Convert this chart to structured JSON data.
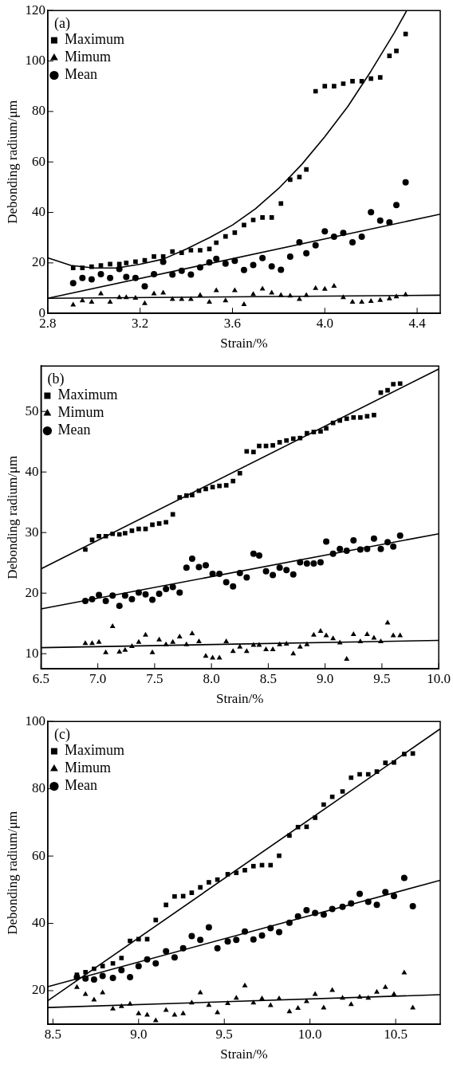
{
  "chart_data": [
    {
      "type": "scatter",
      "xlabel": "Strain/%",
      "ylabel": "Debonding radium/μm",
      "annotations": [
        "(a)"
      ],
      "legend": "top left",
      "grid": false,
      "xlim": [
        2.8,
        4.5
      ],
      "xticks": [
        2.8,
        3.2,
        3.6,
        {
          "value": 4.0,
          "label": "4.0"
        },
        4.4
      ],
      "ylim": [
        0,
        120
      ],
      "yticks": [
        0,
        20,
        40,
        60,
        80,
        100,
        120
      ],
      "x": [
        2.91,
        2.95,
        2.99,
        3.03,
        3.07,
        3.11,
        3.14,
        3.18,
        3.22,
        3.26,
        3.3,
        3.34,
        3.38,
        3.42,
        3.46,
        3.5,
        3.53,
        3.57,
        3.61,
        3.65,
        3.69,
        3.73,
        3.77,
        3.81,
        3.85,
        3.89,
        3.92,
        3.96,
        4.0,
        4.04,
        4.08,
        4.12,
        4.16,
        4.2,
        4.24,
        4.28,
        4.31,
        4.35
      ],
      "series": [
        {
          "name": "Maximum",
          "color": "#000000",
          "marker": "square",
          "values": [
            18,
            18,
            18.5,
            19,
            19.5,
            19.5,
            20,
            20.5,
            21,
            22.5,
            22.5,
            24.5,
            24,
            25,
            25,
            25.5,
            28,
            30.5,
            32,
            35,
            37,
            38,
            38,
            43.5,
            53,
            54,
            57,
            88,
            90,
            90,
            91,
            92,
            92,
            93,
            93.5,
            102,
            104,
            110.7
          ]
        },
        {
          "name": "Mimum",
          "color": "#000000",
          "marker": "triangle",
          "values": [
            3.4,
            5,
            4.5,
            7.8,
            4.5,
            6.3,
            6.3,
            6.1,
            3.9,
            7.8,
            8.1,
            5.6,
            5.6,
            5.6,
            7.2,
            4.5,
            9.1,
            5,
            9.1,
            3.5,
            7.6,
            9.7,
            8.1,
            7.2,
            6.9,
            5.6,
            7.2,
            9.9,
            9.6,
            10.8,
            6.3,
            4.5,
            4.5,
            4.8,
            5.2,
            5.8,
            6.6,
            7.4
          ]
        },
        {
          "name": "Mean",
          "color": "#000000",
          "marker": "circle",
          "values": [
            12,
            14,
            13.5,
            15.5,
            14,
            17.6,
            14.4,
            14,
            10.7,
            15.5,
            20.4,
            15.4,
            16.9,
            15.4,
            18.2,
            20.2,
            21.6,
            19.7,
            20.8,
            17.2,
            19.2,
            21.9,
            18.6,
            17.3,
            22.5,
            28.2,
            23.8,
            27,
            32.5,
            30.4,
            31.9,
            28.2,
            30.4,
            40.1,
            36.8,
            36.1,
            42.9,
            51.9
          ]
        },
        {
          "type": "line",
          "color": "#000000",
          "marker": "none",
          "x": [
            2.8,
            2.9,
            3.0,
            3.1,
            3.2,
            3.3,
            3.4,
            3.5,
            3.6,
            3.7,
            3.8,
            3.9,
            4.0,
            4.1,
            4.2,
            4.3,
            4.355
          ],
          "values": [
            22,
            19,
            18,
            18,
            19.5,
            21.5,
            25.5,
            30,
            35,
            41.5,
            49.5,
            59,
            70,
            82,
            96,
            111,
            120
          ]
        },
        {
          "type": "line",
          "color": "#000000",
          "marker": "none",
          "x": [
            2.8,
            4.5
          ],
          "values": [
            6,
            7.2
          ]
        },
        {
          "type": "line",
          "color": "#000000",
          "marker": "none",
          "x": [
            2.8,
            4.5
          ],
          "values": [
            6,
            39.3
          ]
        }
      ]
    },
    {
      "type": "scatter",
      "xlabel": "Strain/%",
      "ylabel": "Debonding radium/μm",
      "annotations": [
        "(b)"
      ],
      "legend": "top left",
      "grid": false,
      "xlim": [
        6.5,
        10.0
      ],
      "xticks": [
        6.5,
        {
          "value": 7.0,
          "label": "7.0"
        },
        7.5,
        {
          "value": 8.0,
          "label": "8.0"
        },
        8.5,
        {
          "value": 9.0,
          "label": "9.0"
        },
        9.5,
        {
          "value": 10.0,
          "label": "10.0"
        }
      ],
      "ylim": [
        7.5,
        57.5
      ],
      "yticks": [
        10,
        20,
        30,
        40,
        50
      ],
      "x": [
        6.89,
        6.95,
        7.01,
        7.07,
        7.13,
        7.19,
        7.24,
        7.3,
        7.36,
        7.42,
        7.48,
        7.54,
        7.6,
        7.66,
        7.72,
        7.78,
        7.83,
        7.89,
        7.95,
        8.01,
        8.07,
        8.13,
        8.19,
        8.25,
        8.31,
        8.37,
        8.42,
        8.48,
        8.54,
        8.6,
        8.66,
        8.72,
        8.78,
        8.84,
        8.9,
        8.96,
        9.01,
        9.07,
        9.13,
        9.19,
        9.25,
        9.31,
        9.37,
        9.43,
        9.49,
        9.55,
        9.6,
        9.66
      ],
      "series": [
        {
          "name": "Maximum",
          "color": "#000000",
          "marker": "square",
          "values": [
            27.2,
            28.8,
            29.4,
            29.4,
            29.8,
            29.7,
            29.9,
            30.3,
            30.6,
            30.6,
            31.3,
            31.5,
            31.7,
            33,
            35.8,
            36.1,
            36.2,
            36.9,
            37.2,
            37.5,
            37.7,
            37.8,
            38.5,
            39.8,
            43.4,
            43.3,
            44.3,
            44.3,
            44.4,
            44.9,
            45.2,
            45.5,
            45.6,
            46.4,
            46.6,
            46.7,
            47.2,
            48.1,
            48.5,
            48.8,
            49,
            49,
            49.2,
            49.4,
            53.1,
            53.5,
            54.5,
            54.6
          ]
        },
        {
          "name": "Mimum",
          "color": "#000000",
          "marker": "triangle",
          "values": [
            11.7,
            11.7,
            11.9,
            10.2,
            14.5,
            10.3,
            10.6,
            11.2,
            11.9,
            13.1,
            10.2,
            12.3,
            11.5,
            11.9,
            12.8,
            11.5,
            13.3,
            12.0,
            9.6,
            9.3,
            9.3,
            12.0,
            10.4,
            11.1,
            10.4,
            11.4,
            11.4,
            10.7,
            10.7,
            11.5,
            11.6,
            10.0,
            11.1,
            11.5,
            13.1,
            13.7,
            13.0,
            12.5,
            11.8,
            9.1,
            13.2,
            12.0,
            13.2,
            12.6,
            12.0,
            15.1,
            13.0,
            13.0
          ]
        },
        {
          "name": "Mean",
          "color": "#000000",
          "marker": "circle",
          "values": [
            18.7,
            19.0,
            19.7,
            18.7,
            19.6,
            17.9,
            19.6,
            19.0,
            20.1,
            19.8,
            18.9,
            19.9,
            20.7,
            21.0,
            20.1,
            24.2,
            25.7,
            24.3,
            24.6,
            23.2,
            23.2,
            21.8,
            21.1,
            23.3,
            22.6,
            26.5,
            26.2,
            23.6,
            23.0,
            24.2,
            23.8,
            23.1,
            25.1,
            24.9,
            24.9,
            25.1,
            28.5,
            26.5,
            27.3,
            27.0,
            28.7,
            27.2,
            27.3,
            29.0,
            27.3,
            28.4,
            27.7,
            29.5
          ]
        },
        {
          "type": "line",
          "color": "#000000",
          "marker": "none",
          "x": [
            6.5,
            10.0
          ],
          "values": [
            24,
            57
          ]
        },
        {
          "type": "line",
          "color": "#000000",
          "marker": "none",
          "x": [
            6.5,
            10.0
          ],
          "values": [
            11,
            12.2
          ]
        },
        {
          "type": "line",
          "color": "#000000",
          "marker": "none",
          "x": [
            6.5,
            10.0
          ],
          "values": [
            17.4,
            29.8
          ]
        }
      ]
    },
    {
      "type": "scatter",
      "xlabel": "Strain/%",
      "ylabel": "Debonding radium/μm",
      "annotations": [
        "(c)"
      ],
      "legend": "top left",
      "grid": false,
      "xlim": [
        8.47,
        10.76
      ],
      "xticks": [
        8.5,
        {
          "value": 9.0,
          "label": "9.0"
        },
        9.5,
        {
          "value": 10.0,
          "label": "10.0"
        },
        10.5
      ],
      "ylim": [
        10,
        100
      ],
      "yticks": [
        20,
        40,
        60,
        80,
        100
      ],
      "x": [
        8.64,
        8.69,
        8.74,
        8.79,
        8.85,
        8.9,
        8.95,
        9.0,
        9.05,
        9.1,
        9.16,
        9.21,
        9.26,
        9.31,
        9.36,
        9.41,
        9.46,
        9.52,
        9.57,
        9.62,
        9.67,
        9.72,
        9.77,
        9.82,
        9.88,
        9.93,
        9.98,
        10.03,
        10.08,
        10.13,
        10.19,
        10.24,
        10.29,
        10.34,
        10.39,
        10.44,
        10.49,
        10.55,
        10.6
      ],
      "series": [
        {
          "name": "Maximum",
          "color": "#000000",
          "marker": "square",
          "values": [
            24.7,
            25.5,
            26.5,
            27.3,
            28.1,
            29.7,
            34.8,
            35.3,
            35.3,
            41.0,
            45.5,
            48.0,
            48.1,
            49.1,
            50.7,
            52.2,
            53.0,
            54.6,
            55.0,
            55.8,
            57.0,
            57.3,
            57.3,
            60.1,
            66.1,
            68.6,
            68.7,
            71.4,
            75.3,
            77.6,
            79.2,
            83.3,
            84.3,
            84.3,
            85.1,
            87.7,
            87.8,
            90.3,
            90.5
          ]
        },
        {
          "name": "Mimum",
          "color": "#000000",
          "marker": "triangle",
          "values": [
            21.0,
            18.9,
            17.3,
            19.4,
            14.6,
            15.3,
            16.0,
            13.2,
            12.8,
            11.1,
            14.2,
            12.8,
            13.2,
            16.4,
            19.4,
            15.7,
            13.5,
            16.2,
            17.8,
            21.5,
            16.4,
            17.6,
            15.6,
            17.6,
            13.8,
            14.8,
            16.8,
            18.9,
            14.9,
            20.1,
            17.8,
            15.9,
            18.1,
            17.8,
            19.6,
            21.0,
            18.9,
            25.3,
            14.9
          ]
        },
        {
          "name": "Mean",
          "color": "#000000",
          "marker": "circle",
          "values": [
            24.0,
            23.6,
            23.3,
            24.4,
            23.8,
            26.1,
            24.0,
            27.3,
            29.3,
            28.1,
            31.7,
            29.9,
            32.6,
            36.2,
            35.1,
            38.8,
            32.6,
            34.6,
            35.1,
            37.6,
            35.2,
            36.4,
            38.6,
            37.4,
            40.2,
            42.1,
            43.9,
            43.1,
            42.6,
            44.3,
            44.9,
            45.9,
            48.8,
            46.4,
            45.5,
            49.3,
            48.1,
            53.5,
            45.1
          ]
        },
        {
          "type": "line",
          "color": "#000000",
          "marker": "none",
          "x": [
            8.47,
            10.76
          ],
          "values": [
            17,
            97.8
          ]
        },
        {
          "type": "line",
          "color": "#000000",
          "marker": "none",
          "x": [
            8.47,
            10.76
          ],
          "values": [
            15,
            18.8
          ]
        },
        {
          "type": "line",
          "color": "#000000",
          "marker": "none",
          "x": [
            8.47,
            10.76
          ],
          "values": [
            21.2,
            52.8
          ]
        }
      ]
    }
  ]
}
